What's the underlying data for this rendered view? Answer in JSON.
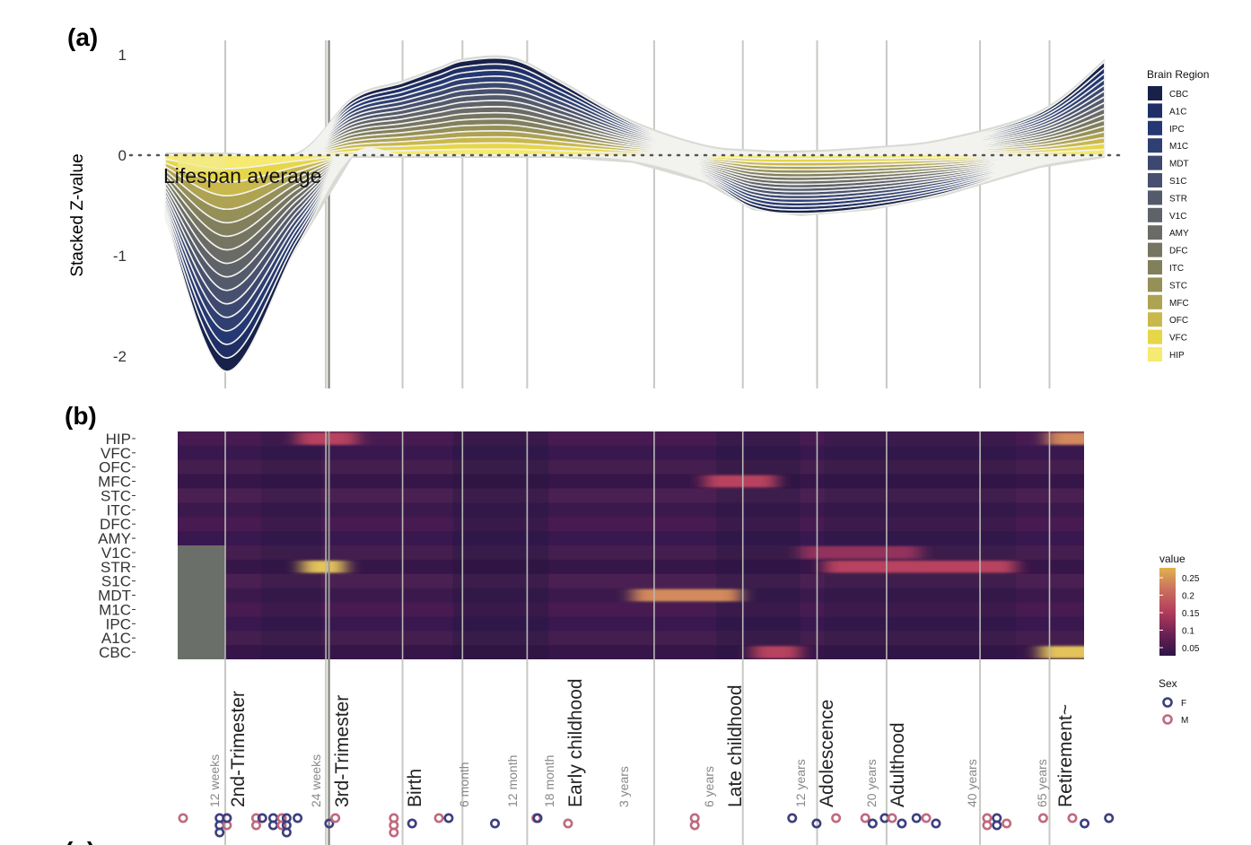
{
  "panel_a": {
    "tag": "(a)"
  },
  "panel_b": {
    "tag": "(b)"
  },
  "colors": {
    "F": "#3c3f7e",
    "M": "#c06a7d",
    "missing": "#6b6f6a",
    "guide": "#c8c8c4",
    "guide_strong": "#8e8e8a",
    "ribbon_bg": "#dadad5"
  },
  "chart_data": [
    {
      "type": "area",
      "subtype": "stacked-streamgraph",
      "ylabel": "Stacked Z-value",
      "ylim": [
        -2.3,
        1.1
      ],
      "yticks": [
        1,
        0,
        -1,
        -2
      ],
      "annotation": "Lifespan average",
      "baseline": 0,
      "baseline_style": "dotted",
      "x_positions": [
        -2.5,
        0,
        3,
        5.3,
        7.4,
        8.9,
        10,
        12,
        14,
        17,
        20,
        22,
        24,
        27,
        30,
        34,
        36.7
      ],
      "upper_envelope": [
        0,
        0,
        0,
        0.55,
        0.72,
        0.85,
        0.94,
        0.95,
        0.72,
        0.32,
        0.08,
        0.03,
        0.02,
        0.06,
        0.14,
        0.42,
        0.93
      ],
      "lower_envelope": [
        -0.62,
        -2.15,
        -0.9,
        0,
        0,
        0,
        0,
        0,
        0,
        -0.05,
        -0.25,
        -0.52,
        -0.58,
        -0.52,
        -0.38,
        -0.1,
        0
      ],
      "legend": {
        "title": "Brain Region",
        "position": "right",
        "items": [
          {
            "name": "CBC",
            "color": "#17214a"
          },
          {
            "name": "A1C",
            "color": "#1f2f66"
          },
          {
            "name": "IPC",
            "color": "#243873"
          },
          {
            "name": "M1C",
            "color": "#2f3f72"
          },
          {
            "name": "MDT",
            "color": "#3c4870"
          },
          {
            "name": "S1C",
            "color": "#47506e"
          },
          {
            "name": "STR",
            "color": "#535a6c"
          },
          {
            "name": "V1C",
            "color": "#5e6269"
          },
          {
            "name": "AMY",
            "color": "#6a6b66"
          },
          {
            "name": "DFC",
            "color": "#767562"
          },
          {
            "name": "ITC",
            "color": "#827f5d"
          },
          {
            "name": "STC",
            "color": "#958f58"
          },
          {
            "name": "MFC",
            "color": "#aea253"
          },
          {
            "name": "OFC",
            "color": "#c9b84b"
          },
          {
            "name": "VFC",
            "color": "#e6d648"
          },
          {
            "name": "HIP",
            "color": "#f6ea70"
          }
        ]
      }
    },
    {
      "type": "heatmap",
      "rows": [
        "HIP",
        "VFC",
        "OFC",
        "MFC",
        "STC",
        "ITC",
        "DFC",
        "AMY",
        "V1C",
        "STR",
        "S1C",
        "MDT",
        "M1C",
        "IPC",
        "A1C",
        "CBC"
      ],
      "colorbar": {
        "title": "value",
        "ticks": [
          "0.25",
          "0.2",
          "0.15",
          "0.1",
          "0.05"
        ],
        "colors": [
          "#e0b24e",
          "#c9705e",
          "#b33c5c",
          "#6c2154",
          "#2c1545"
        ]
      },
      "hot_spots": [
        {
          "row": "HIP",
          "from": 34.3,
          "to": 36.8,
          "value": 0.21
        },
        {
          "row": "HIP",
          "from": 3,
          "to": 5.5,
          "value": 0.16
        },
        {
          "row": "CBC",
          "from": 34,
          "to": 36.8,
          "value": 0.26
        },
        {
          "row": "CBC",
          "from": 22,
          "to": 24,
          "value": 0.19
        },
        {
          "row": "MDT",
          "from": 17,
          "to": 21.5,
          "value": 0.2
        },
        {
          "row": "STR",
          "from": 3.2,
          "to": 5,
          "value": 0.24
        },
        {
          "row": "STR",
          "from": 25,
          "to": 33,
          "value": 0.16
        },
        {
          "row": "MFC",
          "from": 20,
          "to": 23,
          "value": 0.16
        },
        {
          "row": "V1C",
          "from": 24,
          "to": 29,
          "value": 0.14
        }
      ]
    }
  ],
  "period_stages": [
    {
      "label": "2nd-Trimester",
      "pos": 0
    },
    {
      "label": "3rd-Trimester",
      "pos": 3.25
    },
    {
      "label": "Birth",
      "pos": 5.5
    },
    {
      "label": "Early childhood",
      "pos": 10.6
    },
    {
      "label": "Late childhood",
      "pos": 17.9
    },
    {
      "label": "Adolescence",
      "pos": 24.7
    },
    {
      "label": "Adulthood",
      "pos": 27.6
    },
    {
      "label": "Retirement~",
      "pos": 34.7
    }
  ],
  "age_marks": [
    {
      "label": "12 weeks",
      "pos": -0.35
    },
    {
      "label": "24 weeks",
      "pos": 2.9
    },
    {
      "label": "6 month",
      "pos": 7.7
    },
    {
      "label": "12 month",
      "pos": 9.15
    },
    {
      "label": "18 month",
      "pos": 10.3
    },
    {
      "label": "3 years",
      "pos": 13.1
    },
    {
      "label": "6 years",
      "pos": 16.5
    },
    {
      "label": "12 years",
      "pos": 23.6
    },
    {
      "label": "20 years",
      "pos": 26.8
    },
    {
      "label": "40 years",
      "pos": 31.5
    },
    {
      "label": "65 years",
      "pos": 34
    },
    {
      "label": "",
      "pos": 36.65
    }
  ],
  "sex_legend": {
    "title": "Sex",
    "items": [
      {
        "label": "F",
        "color": "#3c3f7e"
      },
      {
        "label": "M",
        "color": "#c06a7d"
      }
    ]
  },
  "samples": [
    {
      "x": -1.5,
      "sex": "M",
      "n": 1
    },
    {
      "x": 0,
      "sex": "F",
      "n": 3
    },
    {
      "x": 0.3,
      "sex": "M",
      "n": 2
    },
    {
      "x": 0.3,
      "sex": "F",
      "n": 1
    },
    {
      "x": 1.5,
      "sex": "M",
      "n": 2
    },
    {
      "x": 1.75,
      "sex": "F",
      "n": 1
    },
    {
      "x": 2.2,
      "sex": "F",
      "n": 2
    },
    {
      "x": 2.55,
      "sex": "M",
      "n": 2
    },
    {
      "x": 2.75,
      "sex": "F",
      "n": 3
    },
    {
      "x": 3.2,
      "sex": "F",
      "n": 1
    },
    {
      "x": 4.5,
      "sex": "F",
      "n": 1
    },
    {
      "x": 4.75,
      "sex": "M",
      "n": 1
    },
    {
      "x": 7.15,
      "sex": "M",
      "n": 3
    },
    {
      "x": 7.9,
      "sex": "F",
      "n": 1
    },
    {
      "x": 9,
      "sex": "M",
      "n": 1
    },
    {
      "x": 9.4,
      "sex": "F",
      "n": 1
    },
    {
      "x": 11.3,
      "sex": "F",
      "n": 1
    },
    {
      "x": 13,
      "sex": "M",
      "n": 1
    },
    {
      "x": 13.05,
      "sex": "F",
      "n": 1
    },
    {
      "x": 14.3,
      "sex": "M",
      "n": 1
    },
    {
      "x": 19.5,
      "sex": "M",
      "n": 2
    },
    {
      "x": 23.5,
      "sex": "F",
      "n": 1
    },
    {
      "x": 24.5,
      "sex": "F",
      "n": 1
    },
    {
      "x": 25.3,
      "sex": "M",
      "n": 1
    },
    {
      "x": 26.5,
      "sex": "M",
      "n": 1
    },
    {
      "x": 26.8,
      "sex": "F",
      "n": 1
    },
    {
      "x": 27.3,
      "sex": "F",
      "n": 1
    },
    {
      "x": 27.6,
      "sex": "M",
      "n": 1
    },
    {
      "x": 28,
      "sex": "F",
      "n": 1
    },
    {
      "x": 28.6,
      "sex": "F",
      "n": 1
    },
    {
      "x": 29,
      "sex": "M",
      "n": 1
    },
    {
      "x": 29.4,
      "sex": "F",
      "n": 1
    },
    {
      "x": 31.5,
      "sex": "M",
      "n": 2
    },
    {
      "x": 31.9,
      "sex": "F",
      "n": 2
    },
    {
      "x": 32.3,
      "sex": "M",
      "n": 1
    },
    {
      "x": 33.8,
      "sex": "M",
      "n": 1
    },
    {
      "x": 35,
      "sex": "M",
      "n": 1
    },
    {
      "x": 35.5,
      "sex": "F",
      "n": 1
    },
    {
      "x": 36.5,
      "sex": "F",
      "n": 1
    }
  ]
}
